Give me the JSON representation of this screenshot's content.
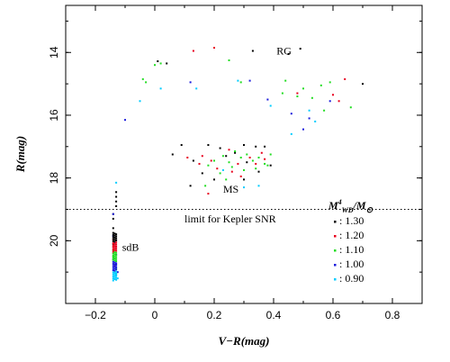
{
  "chart_data": {
    "type": "scatter",
    "xlabel": "V−R(mag)",
    "ylabel": "R(mag)",
    "xlim": [
      -0.3,
      0.9
    ],
    "ylim": [
      22,
      12.5
    ],
    "y_inverted": true,
    "x_ticks": [
      "−0.2",
      "0",
      "0.2",
      "0.4",
      "0.6",
      "0.8"
    ],
    "x_tick_values": [
      -0.2,
      0,
      0.2,
      0.4,
      0.6,
      0.8
    ],
    "y_ticks": [
      "14",
      "16",
      "18",
      "20"
    ],
    "y_tick_values": [
      14,
      16,
      18,
      20
    ],
    "legend_title": "M⁴WD/M⊙",
    "legend_position": "right",
    "annotations": [
      {
        "text": "RG",
        "x": 0.41,
        "y": 13.95
      },
      {
        "text": "MS",
        "x": 0.23,
        "y": 18.35
      },
      {
        "text": "sdB",
        "x": -0.11,
        "y": 20.2
      },
      {
        "text": "limit for Kepler SNR",
        "x": 0.1,
        "y": 19.3
      }
    ],
    "reference_line": {
      "y": 19.0,
      "style": "dotted",
      "label": "limit for Kepler SNR"
    },
    "series": [
      {
        "name": ": 1.30",
        "color": "#000000",
        "points": [
          [
            0.33,
            13.95
          ],
          [
            0.49,
            13.88
          ],
          [
            0.45,
            14.05
          ],
          [
            0.7,
            15.0
          ],
          [
            0.04,
            14.35
          ],
          [
            0.01,
            14.28
          ],
          [
            0.06,
            17.25
          ],
          [
            0.09,
            16.95
          ],
          [
            0.13,
            17.45
          ],
          [
            0.16,
            17.85
          ],
          [
            0.18,
            16.95
          ],
          [
            0.22,
            17.05
          ],
          [
            0.24,
            17.3
          ],
          [
            0.27,
            17.2
          ],
          [
            0.3,
            16.95
          ],
          [
            0.31,
            17.5
          ],
          [
            0.34,
            17.0
          ],
          [
            0.35,
            17.8
          ],
          [
            0.37,
            17.0
          ],
          [
            0.39,
            17.6
          ],
          [
            0.2,
            18.05
          ],
          [
            0.3,
            18.05
          ],
          [
            0.12,
            18.25
          ],
          [
            -0.14,
            19.15
          ],
          [
            -0.14,
            19.3
          ],
          [
            -0.13,
            18.45
          ],
          [
            -0.13,
            18.6
          ],
          [
            -0.13,
            18.75
          ],
          [
            -0.13,
            18.9
          ],
          [
            -0.14,
            19.6
          ],
          [
            -0.14,
            20.1
          ]
        ]
      },
      {
        "name": ": 1.20",
        "color": "#e8001c",
        "points": [
          [
            0.13,
            13.95
          ],
          [
            0.2,
            13.85
          ],
          [
            0.62,
            15.55
          ],
          [
            0.64,
            14.85
          ],
          [
            0.48,
            15.3
          ],
          [
            0.6,
            15.35
          ],
          [
            0.21,
            17.7
          ],
          [
            0.11,
            17.35
          ],
          [
            0.16,
            17.3
          ],
          [
            0.25,
            17.1
          ],
          [
            0.28,
            17.55
          ],
          [
            0.32,
            17.35
          ],
          [
            0.36,
            17.2
          ],
          [
            0.19,
            17.45
          ],
          [
            0.26,
            17.8
          ],
          [
            0.29,
            17.95
          ],
          [
            0.34,
            17.55
          ],
          [
            0.37,
            17.4
          ],
          [
            0.18,
            18.5
          ],
          [
            0.15,
            17.55
          ],
          [
            -0.14,
            19.95
          ],
          [
            -0.14,
            20.2
          ],
          [
            -0.14,
            20.4
          ],
          [
            -0.14,
            20.6
          ],
          [
            -0.135,
            20.8
          ]
        ]
      },
      {
        "name": ": 1.10",
        "color": "#22dd22",
        "points": [
          [
            0.0,
            14.4
          ],
          [
            0.02,
            14.35
          ],
          [
            -0.04,
            14.85
          ],
          [
            -0.03,
            14.95
          ],
          [
            0.25,
            14.25
          ],
          [
            0.44,
            14.9
          ],
          [
            0.48,
            15.4
          ],
          [
            0.57,
            15.85
          ],
          [
            0.53,
            15.45
          ],
          [
            0.43,
            15.3
          ],
          [
            0.5,
            15.15
          ],
          [
            0.56,
            15.05
          ],
          [
            0.29,
            14.95
          ],
          [
            0.66,
            15.75
          ],
          [
            0.59,
            14.95
          ],
          [
            0.18,
            17.6
          ],
          [
            0.2,
            17.45
          ],
          [
            0.23,
            17.3
          ],
          [
            0.25,
            17.5
          ],
          [
            0.27,
            17.15
          ],
          [
            0.29,
            17.35
          ],
          [
            0.31,
            17.25
          ],
          [
            0.33,
            17.45
          ],
          [
            0.35,
            17.35
          ],
          [
            0.37,
            17.55
          ],
          [
            0.39,
            17.25
          ],
          [
            0.22,
            17.85
          ],
          [
            0.26,
            17.65
          ],
          [
            0.3,
            17.75
          ],
          [
            0.34,
            17.7
          ],
          [
            0.38,
            17.6
          ],
          [
            0.17,
            18.25
          ],
          [
            0.24,
            18.05
          ],
          [
            -0.14,
            20.3
          ],
          [
            -0.14,
            20.5
          ],
          [
            -0.135,
            20.7
          ],
          [
            -0.13,
            20.9
          ],
          [
            -0.13,
            21.05
          ]
        ]
      },
      {
        "name": ": 1.00",
        "color": "#1a1adc",
        "points": [
          [
            -0.1,
            16.15
          ],
          [
            0.12,
            14.95
          ],
          [
            0.38,
            15.5
          ],
          [
            0.46,
            15.95
          ],
          [
            0.52,
            16.1
          ],
          [
            0.5,
            16.45
          ],
          [
            0.32,
            14.9
          ],
          [
            0.59,
            15.55
          ],
          [
            -0.14,
            19.15
          ],
          [
            -0.14,
            19.85
          ],
          [
            -0.135,
            20.1
          ],
          [
            -0.13,
            20.45
          ],
          [
            -0.13,
            20.75
          ],
          [
            -0.125,
            21.0
          ]
        ]
      },
      {
        "name": ": 0.90",
        "color": "#00ccff",
        "points": [
          [
            -0.05,
            15.55
          ],
          [
            0.02,
            15.15
          ],
          [
            0.14,
            15.15
          ],
          [
            0.39,
            15.7
          ],
          [
            0.46,
            16.6
          ],
          [
            0.54,
            16.2
          ],
          [
            0.52,
            15.85
          ],
          [
            0.28,
            14.9
          ],
          [
            0.3,
            18.3
          ],
          [
            0.35,
            18.25
          ],
          [
            0.23,
            17.75
          ],
          [
            -0.13,
            18.15
          ],
          [
            -0.14,
            20.6
          ],
          [
            -0.13,
            20.85
          ],
          [
            -0.13,
            21.1
          ],
          [
            -0.125,
            21.2
          ]
        ]
      }
    ]
  }
}
